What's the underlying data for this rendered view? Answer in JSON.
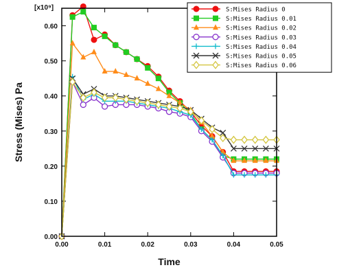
{
  "chart_data": {
    "type": "line",
    "xlabel": "Time",
    "ylabel": "Stress (Mises) Pa",
    "y_multiplier": "[x10⁹]",
    "xlim": [
      0,
      0.05
    ],
    "ylim": [
      0,
      0.65
    ],
    "xticks": [
      "0.00",
      "0.01",
      "0.02",
      "0.03",
      "0.04",
      "0.05"
    ],
    "yticks": [
      "0.00",
      "0.10",
      "0.20",
      "0.30",
      "0.40",
      "0.50",
      "0.60"
    ],
    "legend_position": "top-right",
    "x": [
      0,
      0.0025,
      0.005,
      0.0075,
      0.01,
      0.0125,
      0.015,
      0.0175,
      0.02,
      0.0225,
      0.025,
      0.0275,
      0.03,
      0.0325,
      0.035,
      0.0375,
      0.04,
      0.0425,
      0.045,
      0.0475,
      0.05
    ],
    "series": [
      {
        "name": "S:Mises Radius 0",
        "color": "#ee1111",
        "marker": "circle",
        "values": [
          0.0,
          0.63,
          0.655,
          0.56,
          0.575,
          0.545,
          0.525,
          0.505,
          0.485,
          0.455,
          0.415,
          0.385,
          0.355,
          0.315,
          0.285,
          0.24,
          0.185,
          0.185,
          0.185,
          0.185,
          0.185
        ]
      },
      {
        "name": "S:Mises Radius 0.01",
        "color": "#22cc22",
        "marker": "square",
        "values": [
          0.0,
          0.625,
          0.64,
          0.595,
          0.57,
          0.545,
          0.525,
          0.505,
          0.48,
          0.45,
          0.41,
          0.38,
          0.35,
          0.305,
          0.275,
          0.23,
          0.22,
          0.22,
          0.22,
          0.22,
          0.22
        ]
      },
      {
        "name": "S:Mises Radius 0.02",
        "color": "#ff8c1a",
        "marker": "triangle",
        "values": [
          0.0,
          0.55,
          0.51,
          0.525,
          0.47,
          0.47,
          0.46,
          0.45,
          0.435,
          0.42,
          0.4,
          0.38,
          0.36,
          0.325,
          0.285,
          0.24,
          0.215,
          0.215,
          0.215,
          0.215,
          0.215
        ]
      },
      {
        "name": "S:Mises Radius 0.03",
        "color": "#8833cc",
        "marker": "circle-open",
        "values": [
          0.0,
          0.44,
          0.375,
          0.395,
          0.37,
          0.375,
          0.375,
          0.375,
          0.37,
          0.365,
          0.355,
          0.35,
          0.34,
          0.3,
          0.27,
          0.225,
          0.18,
          0.18,
          0.18,
          0.18,
          0.18
        ]
      },
      {
        "name": "S:Mises Radius 0.04",
        "color": "#11bbcc",
        "marker": "plus",
        "values": [
          0.0,
          0.455,
          0.39,
          0.405,
          0.385,
          0.385,
          0.385,
          0.38,
          0.375,
          0.37,
          0.365,
          0.355,
          0.345,
          0.305,
          0.275,
          0.23,
          0.175,
          0.175,
          0.175,
          0.175,
          0.175
        ]
      },
      {
        "name": "S:Mises Radius 0.05",
        "color": "#333333",
        "marker": "x",
        "values": [
          0.0,
          0.45,
          0.405,
          0.42,
          0.4,
          0.4,
          0.395,
          0.39,
          0.385,
          0.38,
          0.375,
          0.37,
          0.36,
          0.335,
          0.31,
          0.295,
          0.25,
          0.25,
          0.25,
          0.25,
          0.25
        ]
      },
      {
        "name": "S:Mises Radius 0.06",
        "color": "#d4c640",
        "marker": "diamond-open",
        "values": [
          0.0,
          0.44,
          0.395,
          0.41,
          0.395,
          0.395,
          0.39,
          0.385,
          0.38,
          0.375,
          0.37,
          0.365,
          0.355,
          0.33,
          0.305,
          0.28,
          0.275,
          0.275,
          0.275,
          0.275,
          0.275
        ]
      }
    ]
  }
}
